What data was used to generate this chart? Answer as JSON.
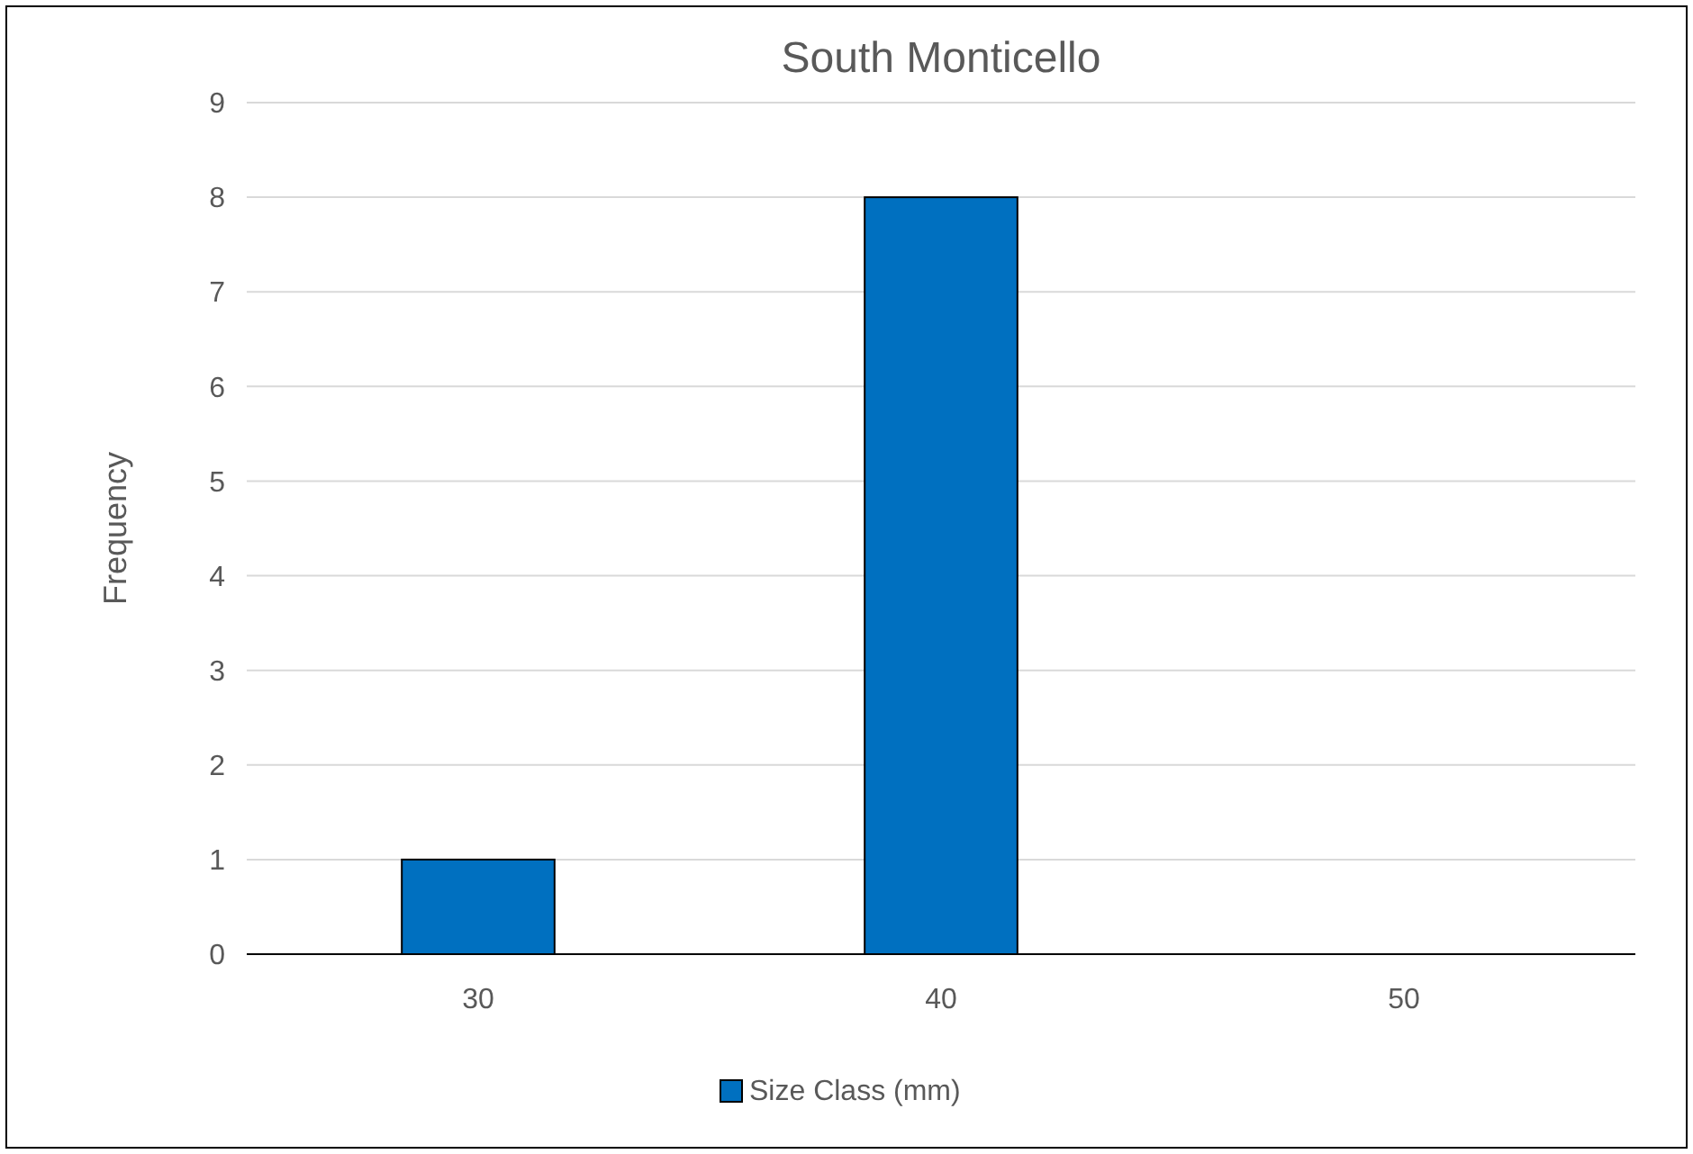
{
  "chart_data": {
    "type": "bar",
    "title": "South Monticello",
    "ylabel": "Frequency",
    "categories": [
      "30",
      "40",
      "50"
    ],
    "series": [
      {
        "name": "Size Class (mm)",
        "color": "#0070c0",
        "values": [
          1,
          8,
          0
        ]
      }
    ],
    "ylim": [
      0,
      9
    ],
    "yticks": [
      0,
      1,
      2,
      3,
      4,
      5,
      6,
      7,
      8,
      9
    ],
    "grid": "y",
    "legend": "bottom"
  }
}
